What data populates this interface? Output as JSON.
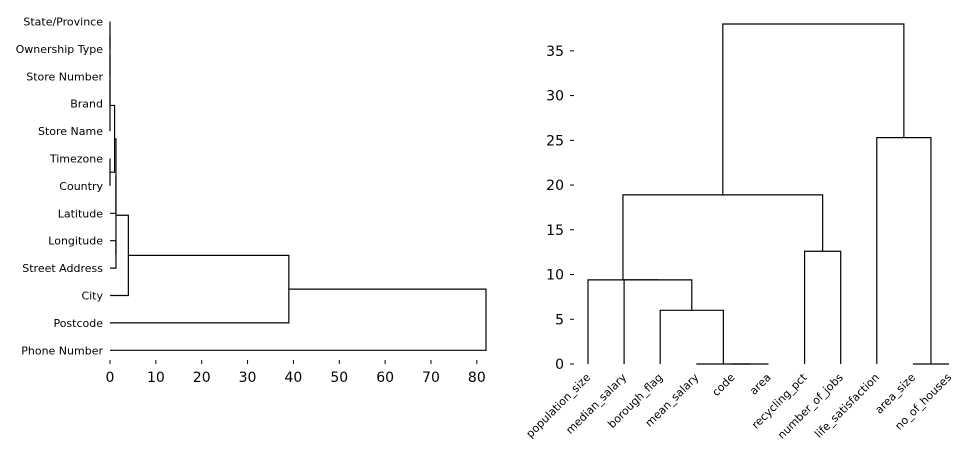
{
  "chart_data": [
    {
      "type": "dendrogram",
      "orientation": "horizontal",
      "leaves": [
        "State/Province",
        "Ownership Type",
        "Store Number",
        "Brand",
        "Store Name",
        "Timezone",
        "Country",
        "Latitude",
        "Longitude",
        "Street Address",
        "City",
        "Postcode",
        "Phone Number"
      ],
      "xticks": [
        0,
        10,
        20,
        30,
        40,
        50,
        60,
        70,
        80
      ],
      "xlim": [
        0,
        82
      ],
      "merges": [
        {
          "a": 0,
          "b": 1,
          "height": 0
        },
        {
          "a": 13,
          "b": 2,
          "height": 0
        },
        {
          "a": 14,
          "b": 3,
          "height": 0
        },
        {
          "a": 15,
          "b": 4,
          "height": 0
        },
        {
          "a": 5,
          "b": 6,
          "height": 0
        },
        {
          "a": 16,
          "b": 17,
          "height": 1.0
        },
        {
          "a": 18,
          "b": 7,
          "height": 1.3
        },
        {
          "a": 8,
          "b": 9,
          "height": 1.3
        },
        {
          "a": 19,
          "b": 20,
          "height": 1.3
        },
        {
          "a": 21,
          "b": 10,
          "height": 4.0
        },
        {
          "a": 22,
          "b": 11,
          "height": 39
        },
        {
          "a": 23,
          "b": 12,
          "height": 82
        }
      ]
    },
    {
      "type": "dendrogram",
      "orientation": "vertical",
      "leaves": [
        "population_size",
        "median_salary",
        "borough_flag",
        "mean_salary",
        "code",
        "area",
        "recycling_pct",
        "number_of_jobs",
        "life_satisfaction",
        "area_size",
        "no_of_houses"
      ],
      "yticks": [
        0,
        5,
        10,
        15,
        20,
        25,
        30,
        35
      ],
      "ylim": [
        0,
        38
      ],
      "merges": [
        {
          "a": 4,
          "b": 5,
          "height": 0
        },
        {
          "a": 3,
          "b": 11,
          "height": 0
        },
        {
          "a": 9,
          "b": 10,
          "height": 0
        },
        {
          "a": 2,
          "b": 12,
          "height": 6.0
        },
        {
          "a": 1,
          "b": 14,
          "height": 9.4
        },
        {
          "a": 0,
          "b": 15,
          "height": 9.4
        },
        {
          "a": 6,
          "b": 7,
          "height": 12.6
        },
        {
          "a": 16,
          "b": 17,
          "height": 18.9
        },
        {
          "a": 8,
          "b": 13,
          "height": 25.3
        },
        {
          "a": 18,
          "b": 19,
          "height": 38.0
        }
      ]
    }
  ]
}
